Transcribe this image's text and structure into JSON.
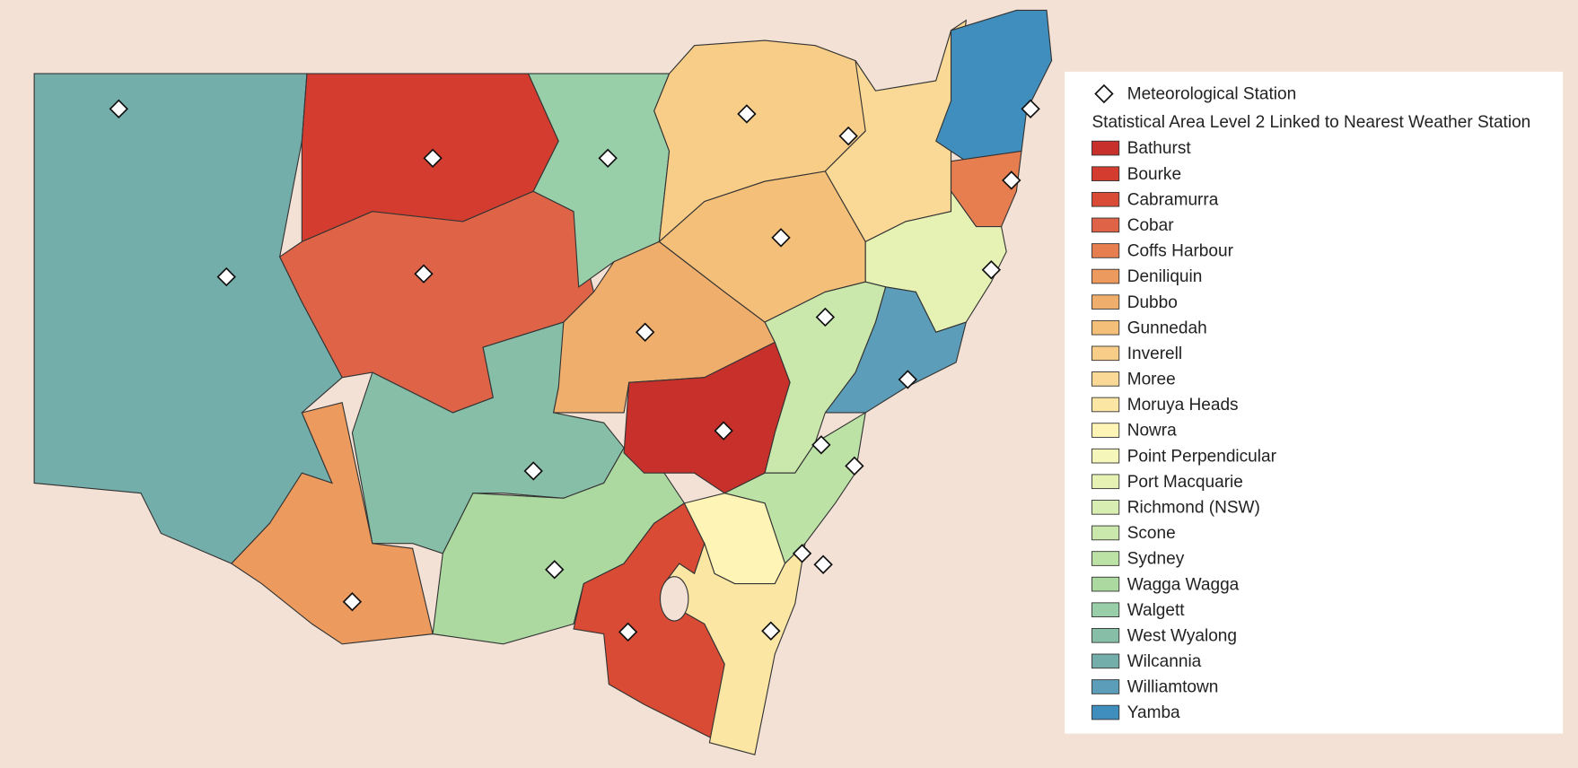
{
  "legend": {
    "marker_label": "Meteorological Station",
    "title": "Statistical Area Level 2 Linked to Nearest Weather Station",
    "items": [
      {
        "label": "Bathurst",
        "color": "#c8302b"
      },
      {
        "label": "Bourke",
        "color": "#d33c2e"
      },
      {
        "label": "Cabramurra",
        "color": "#d94b35"
      },
      {
        "label": "Cobar",
        "color": "#df6447"
      },
      {
        "label": "Coffs Harbour",
        "color": "#e67e50"
      },
      {
        "label": "Deniliquin",
        "color": "#ec9a5e"
      },
      {
        "label": "Dubbo",
        "color": "#f0ae6c"
      },
      {
        "label": "Gunnedah",
        "color": "#f4bf78"
      },
      {
        "label": "Inverell",
        "color": "#f7cd88"
      },
      {
        "label": "Moree",
        "color": "#f9d995"
      },
      {
        "label": "Moruya Heads",
        "color": "#fbe6a3"
      },
      {
        "label": "Nowra",
        "color": "#fdf4b6"
      },
      {
        "label": "Point Perpendicular",
        "color": "#f4f6ba"
      },
      {
        "label": "Port Macquarie",
        "color": "#e6f2b4"
      },
      {
        "label": "Richmond (NSW)",
        "color": "#d8edb1"
      },
      {
        "label": "Scone",
        "color": "#cae7ac"
      },
      {
        "label": "Sydney",
        "color": "#bde2a6"
      },
      {
        "label": "Wagga Wagga",
        "color": "#abd9a0"
      },
      {
        "label": "Walgett",
        "color": "#98cea8"
      },
      {
        "label": "West Wyalong",
        "color": "#87bea8"
      },
      {
        "label": "Wilcannia",
        "color": "#74aeab"
      },
      {
        "label": "Williamtown",
        "color": "#5c9eb9"
      },
      {
        "label": "Yamba",
        "color": "#3f8ebd"
      }
    ]
  }
}
